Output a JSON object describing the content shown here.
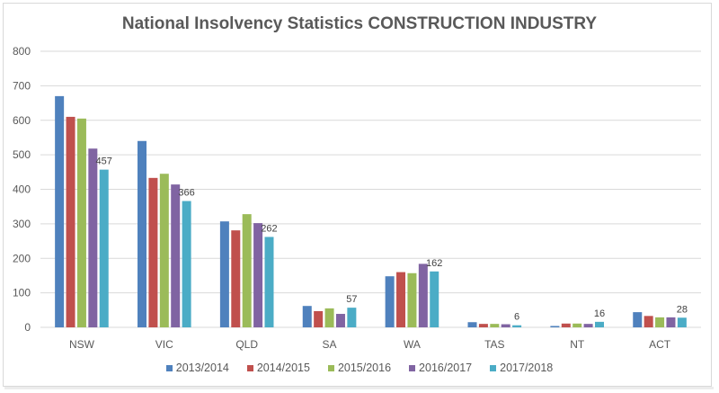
{
  "chart_data": {
    "type": "bar",
    "title": "National Insolvency Statistics CONSTRUCTION INDUSTRY",
    "xlabel": "",
    "ylabel": "",
    "ylim": [
      0,
      800
    ],
    "yticks": [
      0,
      100,
      200,
      300,
      400,
      500,
      600,
      700,
      800
    ],
    "ytick_labels": [
      "0",
      "100",
      "200",
      "300",
      "400",
      "500",
      "600",
      "700",
      "800"
    ],
    "grid": true,
    "legend_position": "bottom",
    "categories": [
      "NSW",
      "VIC",
      "QLD",
      "SA",
      "WA",
      "TAS",
      "NT",
      "ACT"
    ],
    "series": [
      {
        "name": "2013/2014",
        "color": "#4f81bd",
        "values": [
          670,
          540,
          307,
          62,
          148,
          15,
          4,
          44
        ]
      },
      {
        "name": "2014/2015",
        "color": "#c0504d",
        "values": [
          610,
          433,
          281,
          47,
          160,
          10,
          11,
          33
        ]
      },
      {
        "name": "2015/2016",
        "color": "#9bbb59",
        "values": [
          605,
          445,
          328,
          55,
          157,
          10,
          11,
          29
        ]
      },
      {
        "name": "2016/2017",
        "color": "#8064a2",
        "values": [
          518,
          414,
          302,
          39,
          184,
          9,
          10,
          29
        ]
      },
      {
        "name": "2017/2018",
        "color": "#4bacc6",
        "values": [
          457,
          366,
          262,
          57,
          162,
          6,
          16,
          28
        ]
      }
    ],
    "data_labels": {
      "series": "2017/2018",
      "values": [
        "457",
        "366",
        "262",
        "57",
        "162",
        "6",
        "16",
        "28"
      ]
    }
  },
  "colors": {
    "gridline": "#d9d9d9",
    "axis_text": "#595959",
    "title_text": "#595959"
  }
}
